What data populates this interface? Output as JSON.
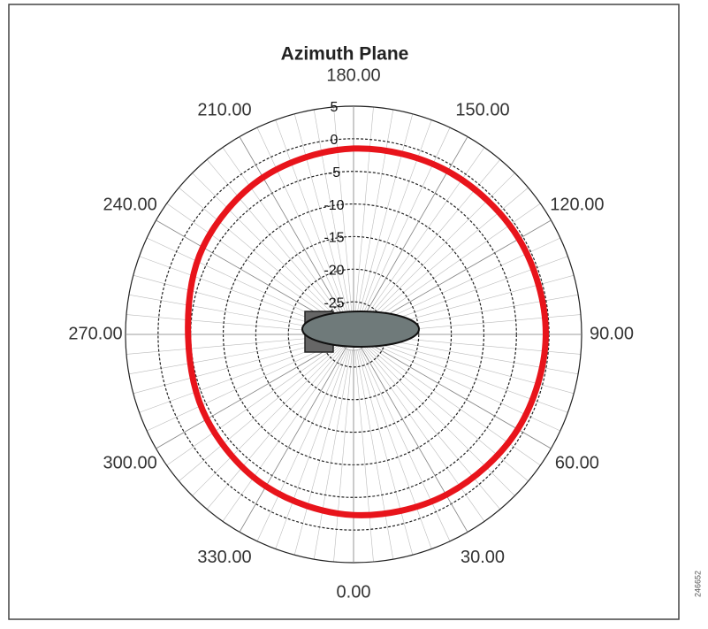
{
  "chart_data": {
    "type": "polar",
    "title": "Azimuth Plane",
    "theta": [
      0,
      30,
      60,
      90,
      120,
      150,
      180,
      210,
      240,
      270,
      300,
      330
    ],
    "series": [
      {
        "color": "#e8141b",
        "values": [
          -2.3,
          -1.6,
          -0.9,
          -0.5,
          -0.7,
          -1.1,
          -1.5,
          -2.2,
          -3.3,
          -4.6,
          -4.0,
          -3.1
        ]
      }
    ],
    "rlim": [
      -30,
      5
    ],
    "rticks": [
      5,
      0,
      -5,
      -10,
      -15,
      -20,
      -25
    ],
    "thetaticks": [
      {
        "value": 0,
        "label": "0.00"
      },
      {
        "value": 30,
        "label": "30.00"
      },
      {
        "value": 60,
        "label": "60.00"
      },
      {
        "value": 90,
        "label": "90.00"
      },
      {
        "value": 120,
        "label": "120.00"
      },
      {
        "value": 150,
        "label": "150.00"
      },
      {
        "value": 180,
        "label": "180.00"
      },
      {
        "value": 210,
        "label": "210.00"
      },
      {
        "value": 240,
        "label": "240.00"
      },
      {
        "value": 270,
        "label": "270.00"
      },
      {
        "value": 300,
        "label": "300.00"
      },
      {
        "value": 330,
        "label": "330.00"
      }
    ],
    "annotation": "246652",
    "grid": true
  }
}
